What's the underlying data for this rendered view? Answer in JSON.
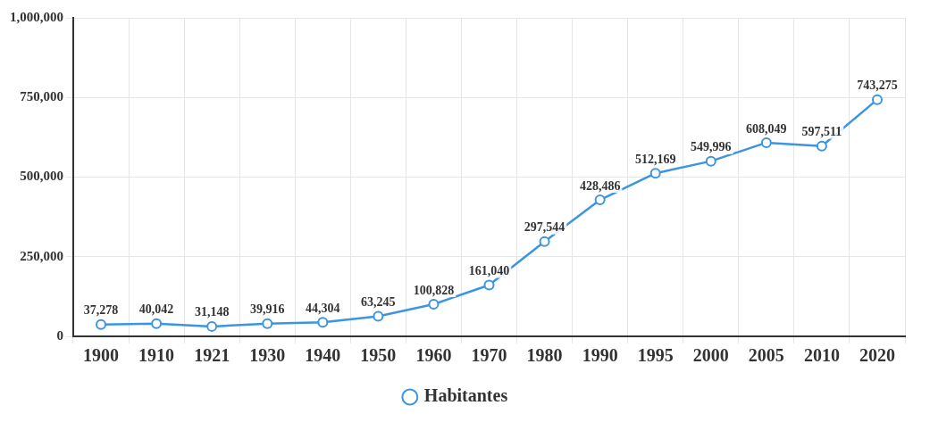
{
  "chart_data": {
    "type": "line",
    "categories": [
      "1900",
      "1910",
      "1921",
      "1930",
      "1940",
      "1950",
      "1960",
      "1970",
      "1980",
      "1990",
      "1995",
      "2000",
      "2005",
      "2010",
      "2020"
    ],
    "series": [
      {
        "name": "Habitantes",
        "color": "#3b95e0",
        "values": [
          37278,
          40042,
          31148,
          39916,
          44304,
          63245,
          100828,
          161040,
          297544,
          428486,
          512169,
          549996,
          608049,
          597511,
          743275
        ],
        "value_labels": [
          "37,278",
          "40,042",
          "31,148",
          "39,916",
          "44,304",
          "63,245",
          "100,828",
          "161,040",
          "297,544",
          "428,486",
          "512,169",
          "549,996",
          "608,049",
          "597,511",
          "743,275"
        ]
      }
    ],
    "ylim": [
      0,
      1000000
    ],
    "yticks": [
      {
        "value": 0,
        "label": "0"
      },
      {
        "value": 250000,
        "label": "250,000"
      },
      {
        "value": 500000,
        "label": "500,000"
      },
      {
        "value": 750000,
        "label": "750,000"
      },
      {
        "value": 1000000,
        "label": "1,000,000"
      }
    ],
    "grid": true,
    "legend": "bottom",
    "marker": "circle",
    "line_style": "solid"
  }
}
